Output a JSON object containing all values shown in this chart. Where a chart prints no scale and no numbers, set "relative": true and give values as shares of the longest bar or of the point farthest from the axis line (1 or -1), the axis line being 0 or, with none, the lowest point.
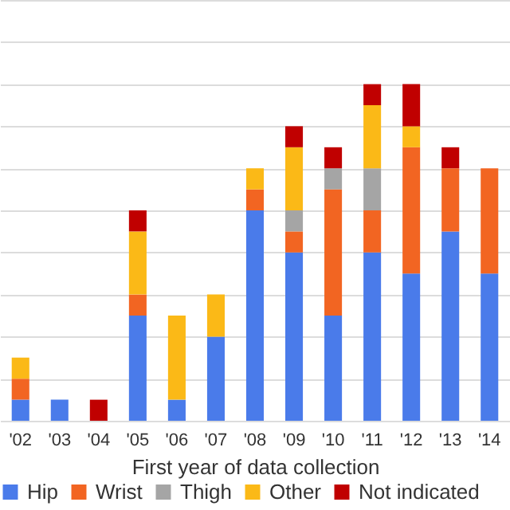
{
  "chart_data": {
    "type": "bar",
    "stacked": true,
    "relative": true,
    "xlabel": "First year of data collection",
    "categories": [
      "'02",
      "'03",
      "'04",
      "'05",
      "'06",
      "'07",
      "'08",
      "'09",
      "'10",
      "'11",
      "'12",
      "'13",
      "'14"
    ],
    "series": [
      {
        "name": "Hip",
        "color": "#4a7bea",
        "values": [
          0.0625,
          0.0625,
          0,
          0.3125,
          0.0625,
          0.25,
          0.625,
          0.5,
          0.3125,
          0.5,
          0.4375,
          0.5625,
          0.4375
        ]
      },
      {
        "name": "Wrist",
        "color": "#f26522",
        "values": [
          0.0625,
          0,
          0,
          0.0625,
          0,
          0,
          0.0625,
          0.0625,
          0.375,
          0.125,
          0.375,
          0.1875,
          0.3125
        ]
      },
      {
        "name": "Thigh",
        "color": "#a5a5a5",
        "values": [
          0,
          0,
          0,
          0,
          0,
          0,
          0,
          0.0625,
          0.0625,
          0.125,
          0,
          0,
          0
        ]
      },
      {
        "name": "Other",
        "color": "#fbb917",
        "values": [
          0.0625,
          0,
          0,
          0.1875,
          0.25,
          0.125,
          0.0625,
          0.1875,
          0,
          0.1875,
          0.0625,
          0,
          0
        ]
      },
      {
        "name": "Not indicated",
        "color": "#c00000",
        "values": [
          0,
          0,
          0.0625,
          0.0625,
          0,
          0,
          0,
          0.0625,
          0.0625,
          0.0625,
          0.125,
          0.0625,
          0
        ]
      }
    ],
    "grid": true,
    "legend": "bottom"
  }
}
